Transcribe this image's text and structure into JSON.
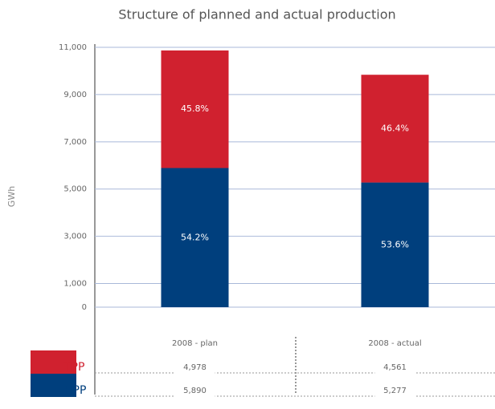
{
  "chart_data": {
    "type": "stacked_bar",
    "title": "Structure of planned and actual production",
    "y_label": "GWh",
    "categories": [
      "2008 - plan",
      "2008 - actual"
    ],
    "series": [
      {
        "name": "HPP",
        "color": "#003f7d",
        "values": [
          5890,
          5277
        ],
        "value_labels": [
          "5,890",
          "5,277"
        ],
        "shares": [
          54.2,
          53.6
        ],
        "share_labels": [
          "54.2%",
          "53.6%"
        ]
      },
      {
        "name": "TPP",
        "color": "#d0212f",
        "values": [
          4978,
          4561
        ],
        "value_labels": [
          "4,978",
          "4,561"
        ],
        "shares": [
          45.8,
          46.4
        ],
        "share_labels": [
          "45.8%",
          "46.4%"
        ]
      }
    ],
    "ylim": [
      0,
      11000
    ],
    "yticks": [
      0,
      {
        "value": 1000,
        "label": "1,000"
      },
      {
        "value": 3000,
        "label": "3,000"
      },
      {
        "value": 5000,
        "label": "5,000"
      },
      {
        "value": 7000,
        "label": "7,000"
      },
      {
        "value": 9000,
        "label": "9,000"
      },
      {
        "value": 11000,
        "label": "11,000"
      }
    ],
    "grid": true
  }
}
